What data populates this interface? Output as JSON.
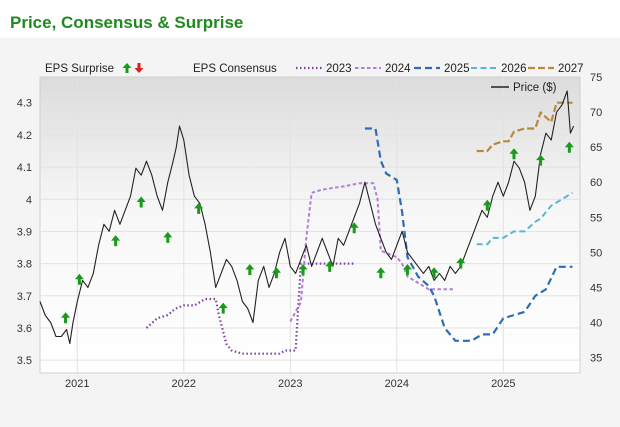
{
  "chart_data": {
    "type": "line",
    "title": "Price, Consensus & Surprise",
    "legend": {
      "eps_surprise": "EPS Surprise",
      "eps_consensus": "EPS Consensus",
      "years": [
        "2023",
        "2024",
        "2025",
        "2026",
        "2027"
      ],
      "price": "Price ($)"
    },
    "x_ticks": [
      "2021",
      "2022",
      "2023",
      "2024",
      "2025"
    ],
    "left_axis": {
      "ticks": [
        "3.5",
        "3.6",
        "3.7",
        "3.8",
        "3.9",
        "4",
        "4.1",
        "4.2",
        "4.3"
      ],
      "ylim": [
        3.46,
        4.38
      ]
    },
    "right_axis": {
      "ticks": [
        "35",
        "40",
        "45",
        "50",
        "55",
        "60",
        "65",
        "70",
        "75"
      ],
      "ylim": [
        32.8,
        75
      ]
    },
    "xlim": [
      2020.65,
      2025.72
    ],
    "colors": {
      "2023": "#7b3fa6",
      "2024": "#b37ed3",
      "2025": "#2e6db4",
      "2026": "#5ab6d6",
      "2027": "#b8893c",
      "price": "#222222",
      "surprise_up": "#1a9a1a",
      "surprise_down": "#d42020"
    },
    "series": [
      {
        "name": "2023",
        "x": [
          2021.65,
          2021.75,
          2021.85,
          2021.92,
          2022.0,
          2022.1,
          2022.2,
          2022.3,
          2022.33,
          2022.4,
          2022.45,
          2022.55,
          2022.7,
          2022.9,
          2022.95,
          2023.05,
          2023.1,
          2023.3,
          2023.5,
          2023.6
        ],
        "y": [
          3.6,
          3.63,
          3.64,
          3.66,
          3.67,
          3.67,
          3.69,
          3.69,
          3.64,
          3.55,
          3.53,
          3.52,
          3.52,
          3.52,
          3.53,
          3.53,
          3.8,
          3.8,
          3.8,
          3.8
        ]
      },
      {
        "name": "2024",
        "x": [
          2023.0,
          2023.1,
          2023.15,
          2023.2,
          2023.3,
          2023.5,
          2023.65,
          2023.7,
          2023.78,
          2023.82,
          2023.85,
          2024.0,
          2024.05,
          2024.1,
          2024.2,
          2024.3,
          2024.4,
          2024.55
        ],
        "y": [
          3.62,
          3.68,
          3.88,
          4.02,
          4.03,
          4.04,
          4.05,
          4.05,
          4.05,
          4.0,
          3.84,
          3.82,
          3.8,
          3.76,
          3.74,
          3.72,
          3.72,
          3.72
        ]
      },
      {
        "name": "2025",
        "x": [
          2023.7,
          2023.8,
          2023.85,
          2023.9,
          2024.0,
          2024.05,
          2024.1,
          2024.2,
          2024.3,
          2024.35,
          2024.45,
          2024.55,
          2024.7,
          2024.8,
          2024.9,
          2025.0,
          2025.1,
          2025.2,
          2025.3,
          2025.4,
          2025.5,
          2025.65
        ],
        "y": [
          4.22,
          4.22,
          4.12,
          4.08,
          4.06,
          3.96,
          3.82,
          3.76,
          3.73,
          3.7,
          3.6,
          3.56,
          3.56,
          3.58,
          3.58,
          3.63,
          3.64,
          3.65,
          3.7,
          3.72,
          3.79,
          3.79
        ]
      },
      {
        "name": "2026",
        "x": [
          2024.75,
          2024.85,
          2024.9,
          2025.0,
          2025.05,
          2025.1,
          2025.2,
          2025.3,
          2025.35,
          2025.45,
          2025.55,
          2025.65
        ],
        "y": [
          3.86,
          3.86,
          3.88,
          3.88,
          3.89,
          3.9,
          3.9,
          3.93,
          3.94,
          3.98,
          4.0,
          4.02
        ]
      },
      {
        "name": "2027",
        "x": [
          2024.75,
          2024.85,
          2024.9,
          2025.0,
          2025.05,
          2025.1,
          2025.2,
          2025.3,
          2025.35,
          2025.45,
          2025.5,
          2025.65
        ],
        "y": [
          4.15,
          4.15,
          4.17,
          4.18,
          4.18,
          4.21,
          4.22,
          4.22,
          4.27,
          4.24,
          4.3,
          4.3
        ]
      },
      {
        "name": "Price ($)",
        "axis": "right",
        "x": [
          2020.65,
          2020.7,
          2020.75,
          2020.8,
          2020.85,
          2020.9,
          2020.93,
          2020.96,
          2021.0,
          2021.05,
          2021.1,
          2021.15,
          2021.2,
          2021.25,
          2021.3,
          2021.35,
          2021.4,
          2021.45,
          2021.5,
          2021.55,
          2021.6,
          2021.65,
          2021.7,
          2021.75,
          2021.8,
          2021.85,
          2021.9,
          2021.93,
          2021.96,
          2022.0,
          2022.05,
          2022.1,
          2022.15,
          2022.2,
          2022.25,
          2022.3,
          2022.35,
          2022.4,
          2022.45,
          2022.5,
          2022.55,
          2022.6,
          2022.65,
          2022.7,
          2022.75,
          2022.8,
          2022.85,
          2022.9,
          2022.95,
          2023.0,
          2023.05,
          2023.1,
          2023.15,
          2023.2,
          2023.25,
          2023.3,
          2023.35,
          2023.4,
          2023.45,
          2023.5,
          2023.55,
          2023.6,
          2023.65,
          2023.7,
          2023.75,
          2023.8,
          2023.85,
          2023.9,
          2023.95,
          2024.0,
          2024.05,
          2024.1,
          2024.15,
          2024.2,
          2024.25,
          2024.3,
          2024.35,
          2024.4,
          2024.45,
          2024.5,
          2024.55,
          2024.6,
          2024.65,
          2024.7,
          2024.75,
          2024.8,
          2024.85,
          2024.9,
          2024.95,
          2025.0,
          2025.05,
          2025.1,
          2025.15,
          2025.2,
          2025.25,
          2025.3,
          2025.35,
          2025.4,
          2025.45,
          2025.5,
          2025.55,
          2025.6,
          2025.63,
          2025.66
        ],
        "y": [
          43,
          41,
          40,
          38,
          38,
          39,
          37,
          40,
          43,
          46,
          45,
          47,
          51,
          54,
          53,
          56,
          54,
          56,
          58,
          62,
          61,
          63,
          61,
          58,
          56,
          60,
          63,
          65,
          68,
          66,
          61,
          58,
          57,
          54,
          50,
          45,
          47,
          49,
          48,
          46,
          43,
          42,
          40,
          46,
          48,
          45,
          47,
          50,
          52,
          48,
          47,
          49,
          51,
          48,
          50,
          52,
          50,
          48,
          52,
          51,
          53,
          55,
          57,
          60,
          57,
          54,
          52,
          50,
          49,
          51,
          53,
          50,
          49,
          48,
          47,
          48,
          46,
          47,
          46,
          48,
          47,
          48,
          50,
          52,
          54,
          56,
          55,
          58,
          60,
          58,
          60,
          63,
          62,
          60,
          56,
          58,
          64,
          67,
          66,
          70,
          71,
          73,
          67,
          68
        ]
      }
    ],
    "surprises": [
      {
        "x": 2020.89,
        "y": 3.63,
        "dir": "up"
      },
      {
        "x": 2021.02,
        "y": 3.75,
        "dir": "up"
      },
      {
        "x": 2021.36,
        "y": 3.87,
        "dir": "up"
      },
      {
        "x": 2021.6,
        "y": 3.99,
        "dir": "up"
      },
      {
        "x": 2021.85,
        "y": 3.88,
        "dir": "up"
      },
      {
        "x": 2022.14,
        "y": 3.97,
        "dir": "up"
      },
      {
        "x": 2022.37,
        "y": 3.66,
        "dir": "up"
      },
      {
        "x": 2022.62,
        "y": 3.78,
        "dir": "up"
      },
      {
        "x": 2022.87,
        "y": 3.77,
        "dir": "up"
      },
      {
        "x": 2023.12,
        "y": 3.78,
        "dir": "up"
      },
      {
        "x": 2023.37,
        "y": 3.79,
        "dir": "up"
      },
      {
        "x": 2023.6,
        "y": 3.91,
        "dir": "up"
      },
      {
        "x": 2023.85,
        "y": 3.77,
        "dir": "up"
      },
      {
        "x": 2024.1,
        "y": 3.78,
        "dir": "up"
      },
      {
        "x": 2024.35,
        "y": 3.77,
        "dir": "up"
      },
      {
        "x": 2024.6,
        "y": 3.8,
        "dir": "up"
      },
      {
        "x": 2024.85,
        "y": 3.98,
        "dir": "up"
      },
      {
        "x": 2025.1,
        "y": 4.14,
        "dir": "up"
      },
      {
        "x": 2025.35,
        "y": 4.12,
        "dir": "up"
      },
      {
        "x": 2025.62,
        "y": 4.16,
        "dir": "up"
      }
    ]
  }
}
